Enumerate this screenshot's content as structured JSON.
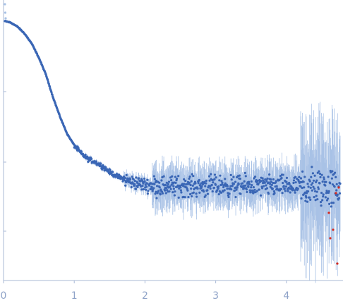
{
  "chart_data": {
    "type": "scatter",
    "title": "",
    "xlabel": "",
    "ylabel": "",
    "xlim": [
      0,
      4.8
    ],
    "ylim": [
      0,
      1
    ],
    "log_y": true,
    "grid": false,
    "x_ticks": [
      "0",
      "1",
      "2",
      "3",
      "4"
    ],
    "x_tick_values": [
      0,
      1,
      2,
      3,
      4
    ],
    "y_tick_values": [
      0.2,
      0.4,
      0.6,
      0.8
    ],
    "colors": {
      "points": "#3a66b5",
      "error_bars": "#a9c2e6",
      "outliers": "#d62a1f",
      "axis": "#a9b9d6",
      "tick_label": "#8fa3c8"
    },
    "series": [
      {
        "points": [
          [
            0.02,
            0.93
          ],
          [
            0.1,
            0.925
          ],
          [
            0.2,
            0.91
          ],
          [
            0.3,
            0.885
          ],
          [
            0.4,
            0.85
          ],
          [
            0.5,
            0.8
          ],
          [
            0.6,
            0.74
          ],
          [
            0.7,
            0.66
          ],
          [
            0.8,
            0.59
          ],
          [
            0.9,
            0.53
          ],
          [
            1.0,
            0.49
          ],
          [
            1.1,
            0.46
          ],
          [
            1.2,
            0.44
          ],
          [
            1.3,
            0.43
          ],
          [
            1.4,
            0.415
          ],
          [
            1.5,
            0.395
          ],
          [
            1.6,
            0.38
          ],
          [
            1.7,
            0.37
          ],
          [
            1.8,
            0.36
          ],
          [
            1.9,
            0.355
          ],
          [
            2.0,
            0.35
          ],
          [
            2.2,
            0.345
          ],
          [
            2.4,
            0.345
          ],
          [
            2.6,
            0.345
          ],
          [
            2.8,
            0.345
          ],
          [
            3.0,
            0.345
          ],
          [
            3.2,
            0.345
          ],
          [
            3.4,
            0.345
          ],
          [
            3.6,
            0.345
          ],
          [
            3.8,
            0.345
          ],
          [
            4.0,
            0.345
          ],
          [
            4.2,
            0.34
          ],
          [
            4.4,
            0.34
          ],
          [
            4.6,
            0.34
          ],
          [
            4.75,
            0.34
          ]
        ]
      }
    ]
  }
}
